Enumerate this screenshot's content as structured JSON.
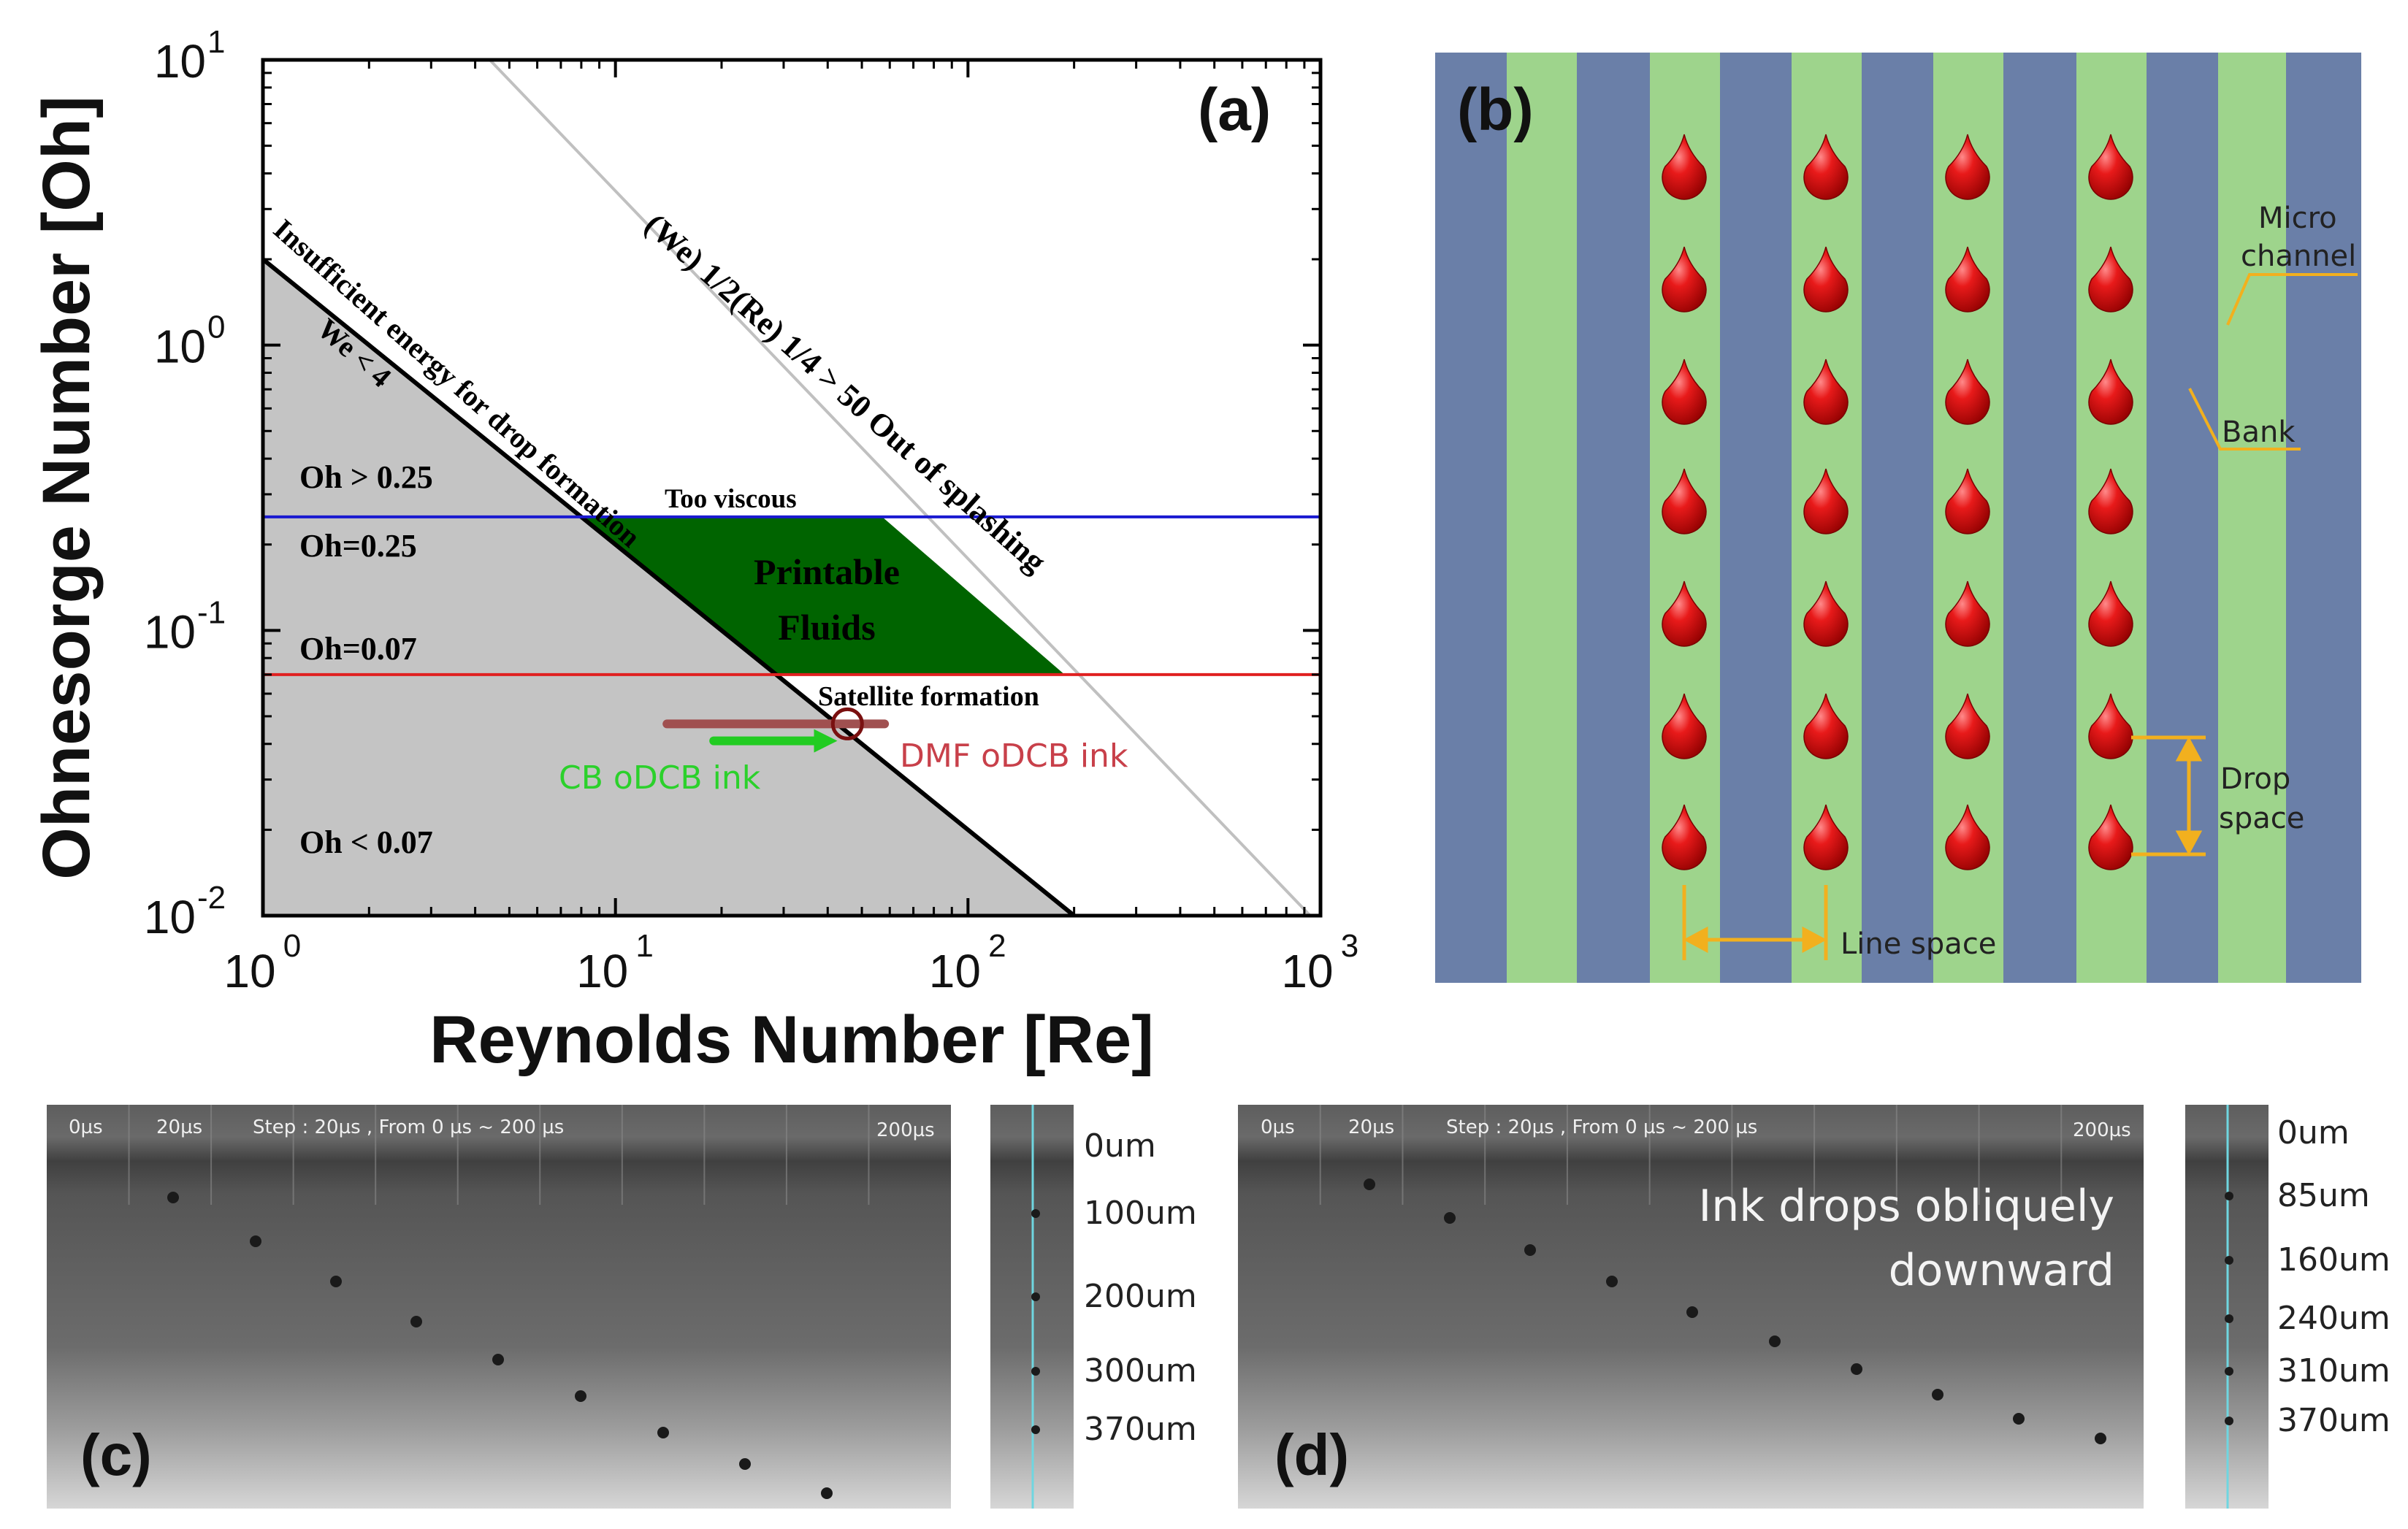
{
  "chart_data": [
    {
      "panel": "(a)",
      "type": "phase-diagram",
      "xlabel": "Reynolds Number [Re]",
      "ylabel": "Ohnesorge Number [Oh]",
      "xscale": "log",
      "yscale": "log",
      "xlim": [
        1,
        1000
      ],
      "ylim": [
        0.01,
        10
      ],
      "x_ticks": [
        {
          "value": 1,
          "base": "10",
          "exp": "0"
        },
        {
          "value": 10,
          "base": "10",
          "exp": "1"
        },
        {
          "value": 100,
          "base": "10",
          "exp": "2"
        },
        {
          "value": 1000,
          "base": "10",
          "exp": "3"
        }
      ],
      "y_ticks": [
        {
          "value": 0.01,
          "base": "10",
          "exp": "-2"
        },
        {
          "value": 0.1,
          "base": "10",
          "exp": "-1"
        },
        {
          "value": 1,
          "base": "10",
          "exp": "0"
        },
        {
          "value": 10,
          "base": "10",
          "exp": "1"
        }
      ],
      "lines": [
        {
          "name": "We = 4 boundary",
          "color": "#000000",
          "points": [
            [
              1,
              2.0
            ],
            [
              200,
              0.01
            ]
          ]
        },
        {
          "name": "splashing boundary",
          "color": "#c0c0c0",
          "points": [
            [
              4.4,
              10
            ],
            [
              935,
              0.01
            ]
          ]
        },
        {
          "name": "Oh = 0.25",
          "color": "#1a1ad0",
          "y": 0.25
        },
        {
          "name": "Oh = 0.07",
          "color": "#e02020",
          "y": 0.07
        }
      ],
      "regions": [
        {
          "name": "insufficient energy",
          "color": "#c4c4c4",
          "points": [
            [
              1,
              2.0
            ],
            [
              200,
              0.01
            ],
            [
              1,
              0.01
            ]
          ]
        },
        {
          "name": "printable fluids",
          "color": "#006400",
          "points": [
            [
              8,
              0.25
            ],
            [
              57.1,
              0.25
            ],
            [
              188,
              0.07
            ],
            [
              28.6,
              0.07
            ]
          ]
        }
      ],
      "annotations": {
        "panel_label": "(a)",
        "we_condition": "We < 4",
        "insufficient": "Insufficient energy for drop formation",
        "splashing": "(We) 1/2(Re) 1/4 > 50 Out of splashing",
        "too_viscous": "Too viscous",
        "printable_line1": "Printable",
        "printable_line2": "Fluids",
        "satellite": "Satellite formation",
        "oh_gt": "Oh > 0.25",
        "oh_025": "Oh=0.25",
        "oh_007": "Oh=0.07",
        "oh_lt": "Oh < 0.07"
      },
      "inks": [
        {
          "label": "CB oDCB ink",
          "color": "#22cc22",
          "x_range": [
            19,
            38
          ],
          "y": 0.041
        },
        {
          "label": "DMF oDCB ink",
          "color": "#c8505a",
          "x_range": [
            14,
            58
          ],
          "y": 0.047,
          "marker_x": 45.5
        }
      ]
    }
  ],
  "panel_b": {
    "label": "(b)",
    "colors": {
      "channel": "#6a7fa8",
      "bank": "#9ed48c",
      "drop": "#dd1010",
      "guide": "#f2b01e"
    },
    "labels": {
      "micro_line1": "Micro",
      "micro_line2": "channel",
      "bank": "Bank",
      "drop_line1": "Drop",
      "drop_line2": "space",
      "line_space": "Line space"
    }
  },
  "panel_c": {
    "label": "(c)",
    "times": [
      "0µs",
      "20µs"
    ],
    "step": "Step : 20µs , From 0 µs ~ 200 µs",
    "end_time": "200µs",
    "scale": [
      "0um",
      "100um",
      "200um",
      "300um",
      "370um"
    ]
  },
  "panel_d": {
    "label": "(d)",
    "times": [
      "0µs",
      "20µs"
    ],
    "step": "Step : 20µs , From 0 µs ~ 200 µs",
    "end_time": "200µs",
    "caption_line1": "Ink drops obliquely",
    "caption_line2": "downward",
    "scale": [
      "0um",
      "85um",
      "160um",
      "240um",
      "310um",
      "370um"
    ]
  }
}
